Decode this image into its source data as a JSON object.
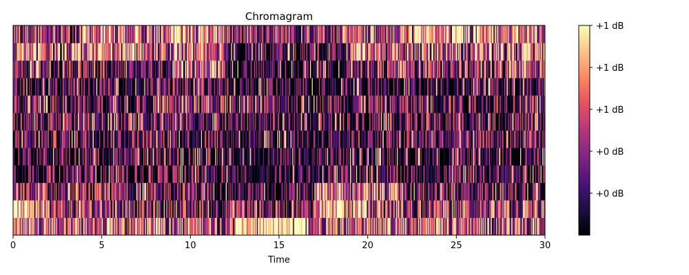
{
  "chart_data": {
    "type": "heatmap",
    "title": "Chromagram",
    "xlabel": "Time",
    "ylabel": "",
    "xlim": [
      0,
      30
    ],
    "x_ticks": [
      0,
      5,
      10,
      15,
      20,
      25,
      30
    ],
    "n_rows": 12,
    "n_frames": 600,
    "colormap": "magma",
    "colormap_stops": [
      "#000004",
      "#1c1044",
      "#4f127b",
      "#812581",
      "#b5367a",
      "#e55064",
      "#fb8761",
      "#fec287",
      "#fcfdbf"
    ],
    "colorbar": {
      "tick_labels": [
        "+0 dB",
        "+0 dB",
        "+1 dB",
        "+1 dB",
        "+1 dB"
      ]
    },
    "row_profiles": [
      {
        "row": 0,
        "segments": [
          [
            0,
            12.5,
            0.62
          ],
          [
            12.5,
            16.5,
            0.95
          ],
          [
            16.5,
            30,
            0.6
          ]
        ]
      },
      {
        "row": 1,
        "segments": [
          [
            0,
            1.5,
            0.9
          ],
          [
            1.5,
            7,
            0.45
          ],
          [
            7,
            17,
            0.35
          ],
          [
            17,
            20,
            0.85
          ],
          [
            20,
            30,
            0.45
          ]
        ]
      },
      {
        "row": 2,
        "segments": [
          [
            0,
            11,
            0.35
          ],
          [
            11,
            12.5,
            0.2
          ],
          [
            12.5,
            17,
            0.15
          ],
          [
            17,
            22,
            0.65
          ],
          [
            22,
            30,
            0.3
          ]
        ]
      },
      {
        "row": 3,
        "segments": [
          [
            0,
            12,
            0.25
          ],
          [
            12,
            18,
            0.12
          ],
          [
            18,
            30,
            0.22
          ]
        ]
      },
      {
        "row": 4,
        "segments": [
          [
            0,
            12,
            0.22
          ],
          [
            12,
            18,
            0.1
          ],
          [
            18,
            30,
            0.18
          ]
        ]
      },
      {
        "row": 5,
        "segments": [
          [
            0,
            12,
            0.28
          ],
          [
            12,
            18,
            0.15
          ],
          [
            18,
            30,
            0.25
          ]
        ]
      },
      {
        "row": 6,
        "segments": [
          [
            0,
            12,
            0.3
          ],
          [
            12,
            18,
            0.2
          ],
          [
            18,
            30,
            0.28
          ]
        ]
      },
      {
        "row": 7,
        "segments": [
          [
            0,
            7,
            0.28
          ],
          [
            7,
            12,
            0.4
          ],
          [
            12,
            18,
            0.3
          ],
          [
            18,
            30,
            0.32
          ]
        ]
      },
      {
        "row": 8,
        "segments": [
          [
            0,
            8,
            0.18
          ],
          [
            8,
            12,
            0.3
          ],
          [
            12,
            30,
            0.15
          ]
        ]
      },
      {
        "row": 9,
        "segments": [
          [
            0,
            9,
            0.3
          ],
          [
            9,
            12,
            0.6
          ],
          [
            12,
            19,
            0.15
          ],
          [
            19,
            30,
            0.4
          ]
        ]
      },
      {
        "row": 10,
        "segments": [
          [
            0,
            12,
            0.65
          ],
          [
            12,
            19,
            0.2
          ],
          [
            19,
            30,
            0.6
          ]
        ]
      },
      {
        "row": 11,
        "segments": [
          [
            0,
            4,
            0.5
          ],
          [
            4,
            12,
            0.7
          ],
          [
            12,
            20,
            0.45
          ],
          [
            20,
            22,
            0.55
          ],
          [
            22,
            26,
            0.8
          ],
          [
            26,
            30,
            0.65
          ]
        ]
      }
    ]
  }
}
